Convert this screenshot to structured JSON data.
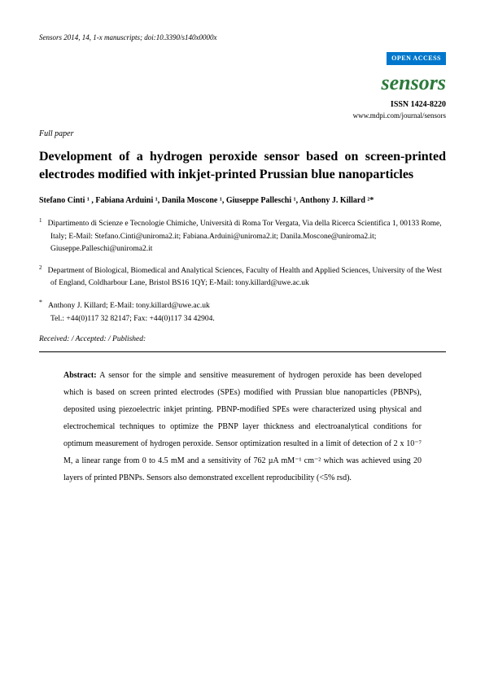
{
  "header": {
    "citation": "Sensors 2014, 14, 1-x manuscripts; doi:10.3390/s140x0000x",
    "open_access": "OPEN ACCESS",
    "journal": "sensors",
    "issn": "ISSN 1424-8220",
    "url": "www.mdpi.com/journal/sensors"
  },
  "paper_type": "Full paper",
  "title": "Development of a hydrogen peroxide sensor based on screen-printed electrodes modified with inkjet-printed Prussian blue nanoparticles",
  "authors_line": "Stefano Cinti ¹ , Fabiana Arduini ¹, Danila Moscone ¹, Giuseppe Palleschi ¹, Anthony J. Killard ²*",
  "affiliations": {
    "a1_sup": "1",
    "a1_text": "Dipartimento di Scienze e Tecnologie Chimiche, Università di Roma Tor Vergata, Via della Ricerca Scientifica 1, 00133 Rome, Italy; E-Mail: Stefano.Cinti@uniroma2.it; Fabiana.Arduini@uniroma2.it; Danila.Moscone@uniroma2.it; Giuseppe.Palleschi@uniroma2.it",
    "a2_sup": "2",
    "a2_text": "Department of Biological, Biomedical and Analytical Sciences,  Faculty of Health and Applied Sciences, University of the West of England, Coldharbour Lane, Bristol BS16 1QY; E-Mail: tony.killard@uwe.ac.uk"
  },
  "correspondence": {
    "sup": "*",
    "text": "Anthony J. Killard; E-Mail: tony.killard@uwe.ac.uk\nTel.: +44(0)117 32 82147; Fax: +44(0)117 34 42904."
  },
  "dates": "Received: / Accepted: / Published:",
  "abstract": {
    "label": "Abstract:",
    "text": " A sensor for the simple and sensitive measurement of hydrogen peroxide has been developed which is based on screen printed electrodes (SPEs) modified with Prussian blue nanoparticles (PBNPs), deposited using piezoelectric inkjet printing. PBNP-modified SPEs were characterized using physical and electrochemical techniques to optimize the PBNP layer thickness and electroanalytical conditions for optimum measurement of hydrogen peroxide. Sensor optimization resulted in a limit of detection of 2 x 10⁻⁷ M, a linear range from 0 to 4.5 mM and a sensitivity of 762 µA mM⁻¹ cm⁻² which was achieved using 20 layers of printed PBNPs. Sensors also demonstrated excellent reproducibility (<5% rsd)."
  },
  "colors": {
    "open_access_bg": "#0077cc",
    "journal_green": "#2a7a3a",
    "text": "#000000",
    "bg": "#ffffff"
  }
}
